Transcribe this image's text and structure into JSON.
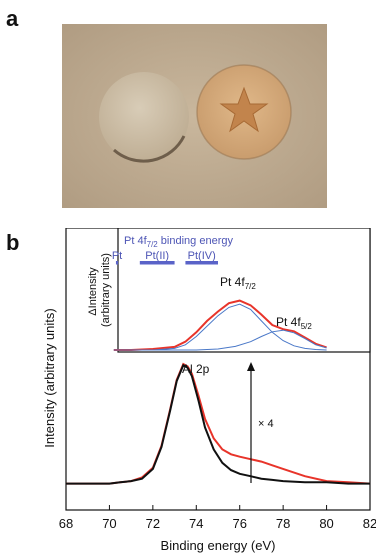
{
  "panels": {
    "a": "a",
    "b": "b"
  },
  "photo": {
    "description_icon": "star-icon"
  },
  "chart_data": [
    {
      "type": "line",
      "xlabel": "Binding energy  (eV)",
      "ylabel": "Intensity (arbitrary units)",
      "xlim": [
        68,
        82
      ],
      "x_ticks": [
        68,
        70,
        72,
        74,
        76,
        78,
        80,
        82
      ],
      "grid": false,
      "annotations": {
        "peak_label": "Al 2p",
        "scale_label": "× 4"
      },
      "series": [
        {
          "color": "#111111",
          "x": [
            68,
            69,
            70,
            70.5,
            71,
            71.5,
            72,
            72.4,
            72.8,
            73.1,
            73.4,
            73.6,
            73.8,
            74.1,
            74.4,
            74.8,
            75.2,
            75.6,
            76,
            76.5,
            77,
            77.5,
            78,
            79,
            80,
            81,
            82
          ],
          "y": [
            0.02,
            0.02,
            0.02,
            0.03,
            0.04,
            0.06,
            0.14,
            0.32,
            0.62,
            0.86,
            0.99,
            0.97,
            0.9,
            0.7,
            0.48,
            0.3,
            0.19,
            0.13,
            0.1,
            0.08,
            0.06,
            0.05,
            0.04,
            0.03,
            0.03,
            0.02,
            0.02
          ]
        },
        {
          "color": "#e8342a",
          "x": [
            68,
            69,
            70,
            70.5,
            71,
            71.5,
            72,
            72.4,
            72.8,
            73.1,
            73.4,
            73.6,
            73.8,
            74.1,
            74.4,
            74.8,
            75.2,
            75.6,
            76,
            76.5,
            77,
            77.5,
            78,
            79,
            80,
            81,
            82
          ],
          "y": [
            0.02,
            0.02,
            0.02,
            0.03,
            0.04,
            0.07,
            0.15,
            0.33,
            0.63,
            0.87,
            1.0,
            0.98,
            0.92,
            0.74,
            0.55,
            0.39,
            0.3,
            0.26,
            0.24,
            0.22,
            0.2,
            0.17,
            0.14,
            0.08,
            0.04,
            0.03,
            0.02
          ]
        }
      ]
    },
    {
      "type": "line",
      "title": "Pt 4f7/2 binding energy",
      "title_main": "Pt 4f",
      "title_sub": "7/2",
      "title_rest": " binding energy",
      "ylabel_line1": "ΔIntensity",
      "ylabel_line2": "(arbitrary units)",
      "xlim": [
        68,
        82
      ],
      "ranges": [
        {
          "label": "Pt",
          "from": 70.3,
          "to": 70.4
        },
        {
          "label": "Pt(II)",
          "from": 71.4,
          "to": 73.0
        },
        {
          "label": "Pt(IV)",
          "from": 73.5,
          "to": 75.0
        }
      ],
      "peak_labels": [
        {
          "main": "Pt 4f",
          "sub": "7/2"
        },
        {
          "main": "Pt 4f",
          "sub": "5/2"
        }
      ],
      "series": [
        {
          "color": "#e8342a",
          "x": [
            70.2,
            71,
            72,
            73,
            73.5,
            74,
            74.5,
            75,
            75.5,
            76,
            76.5,
            77,
            77.5,
            78,
            78.5,
            79,
            79.5,
            80
          ],
          "y": [
            0.0,
            0.0,
            0.02,
            0.06,
            0.16,
            0.34,
            0.56,
            0.74,
            0.9,
            0.95,
            0.86,
            0.68,
            0.48,
            0.4,
            0.36,
            0.24,
            0.12,
            0.05
          ]
        },
        {
          "color": "#4a78c8",
          "x": [
            70.2,
            72,
            73,
            73.5,
            74,
            74.5,
            75,
            75.5,
            76,
            76.5,
            77,
            77.5,
            78,
            78.5,
            79,
            79.5,
            80
          ],
          "y": [
            0.0,
            0.0,
            0.03,
            0.1,
            0.26,
            0.46,
            0.66,
            0.82,
            0.88,
            0.78,
            0.56,
            0.34,
            0.18,
            0.08,
            0.03,
            0.01,
            0.0
          ]
        },
        {
          "color": "#4a78c8",
          "x": [
            70.2,
            74,
            75,
            75.8,
            76.5,
            77,
            77.5,
            78,
            78.5,
            79,
            79.5,
            80
          ],
          "y": [
            0.0,
            0.0,
            0.02,
            0.07,
            0.16,
            0.26,
            0.35,
            0.38,
            0.33,
            0.22,
            0.1,
            0.04
          ]
        }
      ]
    }
  ]
}
